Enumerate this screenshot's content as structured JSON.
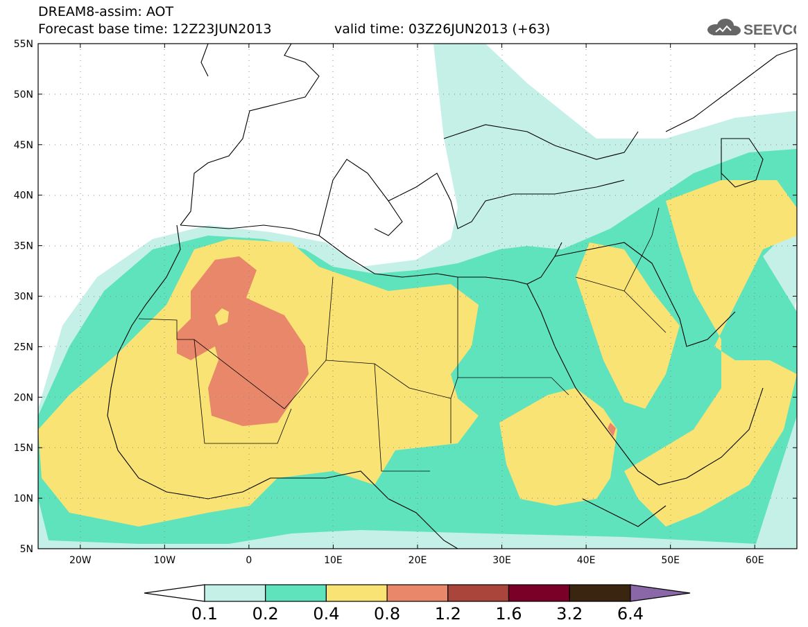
{
  "header": {
    "model_title": "DREAM8-assim: AOT",
    "forecast_base": "Forecast base time: 12Z23JUN2013",
    "valid_time": "valid time: 03Z26JUN2013 (+63)"
  },
  "logo": {
    "text": "SEEVCCC",
    "icon": "cloud-icon",
    "color": "#666666"
  },
  "map": {
    "lon_range": [
      -25,
      65
    ],
    "lat_range": [
      5,
      55
    ],
    "lat_labels": [
      "5N",
      "10N",
      "15N",
      "20N",
      "25N",
      "30N",
      "35N",
      "40N",
      "45N",
      "50N",
      "55N"
    ],
    "lon_labels": [
      "20W",
      "10W",
      "0",
      "10E",
      "20E",
      "30E",
      "40E",
      "50E",
      "60E"
    ],
    "grid": "dotted"
  },
  "colorbar": {
    "labels": [
      "0.1",
      "0.2",
      "0.4",
      "0.8",
      "1.2",
      "1.6",
      "3.2",
      "6.4"
    ],
    "colors": [
      "#ffffff",
      "#c4f0e8",
      "#5ee3bc",
      "#f8e374",
      "#e9876a",
      "#a9453a",
      "#7a0027",
      "#3a2510",
      "#8a68a8"
    ]
  }
}
